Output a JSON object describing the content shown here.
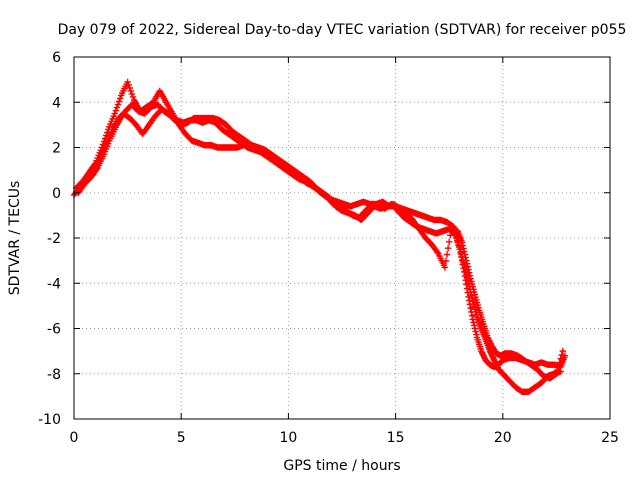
{
  "chart_data": {
    "type": "scatter",
    "title": "Day 079 of 2022, Sidereal Day-to-day VTEC variation (SDTVAR) for receiver p055",
    "xlabel": "GPS time / hours",
    "ylabel": "SDTVAR / TECUs",
    "xlim": [
      0,
      25
    ],
    "ylim": [
      -10,
      6
    ],
    "x_ticks": [
      0,
      5,
      10,
      15,
      20,
      25
    ],
    "y_ticks": [
      -10,
      -8,
      -6,
      -4,
      -2,
      0,
      2,
      4,
      6
    ],
    "grid": true,
    "marker": "+",
    "marker_color": "#ff0000",
    "series": [
      {
        "name": "track-main",
        "x": [
          0.0,
          0.3,
          0.6,
          0.9,
          1.2,
          1.5,
          1.8,
          2.1,
          2.4,
          2.7,
          3.0,
          3.3,
          3.6,
          3.9,
          4.2,
          4.5,
          4.8,
          5.1,
          5.4,
          5.7,
          6.0,
          6.3,
          6.6,
          6.9,
          7.2,
          7.5,
          7.8,
          8.1,
          8.4,
          8.7,
          9.0,
          9.3,
          9.6,
          9.9,
          10.2,
          10.5,
          10.8,
          11.1,
          11.4,
          11.7,
          12.0,
          12.3,
          12.6,
          12.9,
          13.2,
          13.5,
          13.8,
          14.1,
          14.4,
          14.7,
          15.0,
          15.3,
          15.6,
          15.9,
          16.2,
          16.5,
          16.8,
          17.1,
          17.4,
          17.7,
          18.0,
          18.2,
          18.4,
          18.6,
          18.8,
          19.0,
          19.2,
          19.4,
          19.6,
          19.8,
          20.0,
          20.3,
          20.6,
          20.9,
          21.2,
          21.5,
          21.8,
          22.1,
          22.4,
          22.7,
          22.9
        ],
        "y": [
          -0.1,
          0.3,
          0.6,
          0.8,
          1.5,
          2.2,
          2.8,
          3.3,
          3.6,
          3.9,
          3.6,
          3.5,
          3.8,
          3.9,
          3.6,
          3.4,
          3.2,
          3.1,
          3.2,
          3.2,
          3.1,
          3.2,
          3.1,
          2.8,
          2.6,
          2.4,
          2.2,
          2.0,
          1.9,
          1.8,
          1.6,
          1.4,
          1.2,
          1.0,
          0.8,
          0.6,
          0.5,
          0.3,
          0.1,
          -0.1,
          -0.3,
          -0.4,
          -0.5,
          -0.6,
          -0.5,
          -0.4,
          -0.5,
          -0.5,
          -0.4,
          -0.6,
          -0.6,
          -0.7,
          -0.8,
          -0.9,
          -1.0,
          -1.1,
          -1.2,
          -1.2,
          -1.3,
          -1.5,
          -2.5,
          -3.5,
          -4.6,
          -5.6,
          -6.4,
          -7.0,
          -7.4,
          -7.6,
          -7.7,
          -7.6,
          -7.4,
          -7.3,
          -7.3,
          -7.4,
          -7.5,
          -7.6,
          -7.5,
          -7.6,
          -7.6,
          -7.7,
          -7.2
        ]
      },
      {
        "name": "track-secondary",
        "x": [
          0.1,
          0.4,
          0.7,
          1.0,
          1.3,
          1.6,
          1.9,
          2.2,
          2.5,
          2.8,
          3.1,
          3.4,
          3.7,
          4.0,
          4.3,
          4.6,
          4.9,
          5.2,
          5.5,
          5.8,
          6.1,
          6.4,
          6.7,
          7.0,
          7.3,
          7.6,
          7.9,
          8.2,
          8.5,
          8.8,
          9.1,
          9.4,
          9.7,
          10.0,
          10.3,
          10.6,
          10.9,
          11.2,
          11.5,
          11.8,
          12.1,
          12.4,
          12.7,
          13.0,
          13.3,
          13.6,
          13.9,
          14.2,
          14.5,
          14.8,
          15.1,
          15.4,
          15.7,
          16.0,
          16.3,
          16.6,
          16.9,
          17.2,
          17.5,
          17.8,
          18.0,
          18.2,
          18.4,
          18.6,
          18.8,
          19.0,
          19.2,
          19.4,
          19.6,
          19.8,
          20.0,
          20.3,
          20.6,
          20.9,
          21.2,
          21.5,
          21.8,
          22.1,
          22.4,
          22.7
        ],
        "y": [
          0.2,
          0.5,
          0.9,
          1.3,
          2.0,
          2.8,
          3.5,
          4.3,
          4.9,
          4.1,
          3.6,
          3.8,
          4.0,
          4.5,
          4.0,
          3.5,
          3.0,
          2.6,
          2.3,
          2.2,
          2.1,
          2.1,
          2.0,
          2.0,
          2.0,
          2.0,
          2.1,
          2.1,
          2.0,
          1.9,
          1.7,
          1.5,
          1.2,
          1.0,
          0.8,
          0.6,
          0.4,
          0.3,
          0.0,
          -0.2,
          -0.5,
          -0.6,
          -0.8,
          -1.0,
          -1.1,
          -0.8,
          -0.5,
          -0.6,
          -0.7,
          -0.5,
          -0.8,
          -1.1,
          -1.3,
          -1.5,
          -1.6,
          -1.7,
          -1.8,
          -1.7,
          -1.6,
          -1.9,
          -2.5,
          -3.2,
          -4.0,
          -4.8,
          -5.5,
          -6.0,
          -6.5,
          -7.0,
          -7.4,
          -7.8,
          -8.0,
          -8.3,
          -8.6,
          -8.8,
          -8.8,
          -8.6,
          -8.4,
          -8.1,
          -8.0,
          -7.9
        ]
      },
      {
        "name": "track-tertiary",
        "x": [
          0.2,
          0.5,
          0.8,
          1.1,
          1.4,
          1.7,
          2.0,
          2.3,
          2.6,
          2.9,
          3.2,
          3.5,
          3.8,
          4.1,
          4.4,
          4.7,
          5.0,
          5.3,
          5.6,
          5.9,
          6.2,
          6.5,
          6.8,
          7.1,
          7.4,
          7.7,
          8.0,
          8.3,
          8.6,
          8.9,
          9.2,
          9.5,
          9.8,
          10.1,
          10.4,
          10.7,
          11.0,
          11.3,
          11.6,
          11.9,
          12.2,
          12.5,
          12.8,
          13.1,
          13.4,
          13.7,
          14.0,
          14.3,
          14.6,
          14.9,
          15.2,
          15.5,
          15.8,
          16.1,
          16.4,
          16.7,
          17.0,
          17.3,
          17.6,
          17.9,
          18.1,
          18.3,
          18.5,
          18.7,
          18.9,
          19.1,
          19.3,
          19.5,
          19.7,
          19.9,
          20.1,
          20.4,
          20.7,
          21.0,
          21.3,
          21.6,
          21.9,
          22.2,
          22.5,
          22.8
        ],
        "y": [
          0.0,
          0.4,
          0.7,
          1.1,
          1.7,
          2.4,
          3.0,
          3.5,
          3.3,
          3.0,
          2.6,
          3.0,
          3.4,
          3.7,
          3.5,
          3.2,
          3.0,
          3.1,
          3.3,
          3.3,
          3.3,
          3.3,
          3.2,
          3.0,
          2.7,
          2.5,
          2.3,
          2.1,
          2.0,
          1.9,
          1.7,
          1.5,
          1.3,
          1.1,
          0.9,
          0.7,
          0.5,
          0.2,
          0.0,
          -0.2,
          -0.6,
          -0.8,
          -0.9,
          -1.0,
          -1.2,
          -0.9,
          -0.6,
          -0.7,
          -0.6,
          -0.5,
          -0.7,
          -0.9,
          -1.2,
          -1.6,
          -2.0,
          -2.3,
          -2.7,
          -3.3,
          -1.6,
          -1.7,
          -2.2,
          -3.0,
          -3.8,
          -4.5,
          -5.2,
          -5.8,
          -6.4,
          -6.8,
          -7.1,
          -7.2,
          -7.1,
          -7.1,
          -7.2,
          -7.4,
          -7.6,
          -7.8,
          -8.1,
          -8.2,
          -8.0,
          -7.0
        ]
      }
    ]
  }
}
